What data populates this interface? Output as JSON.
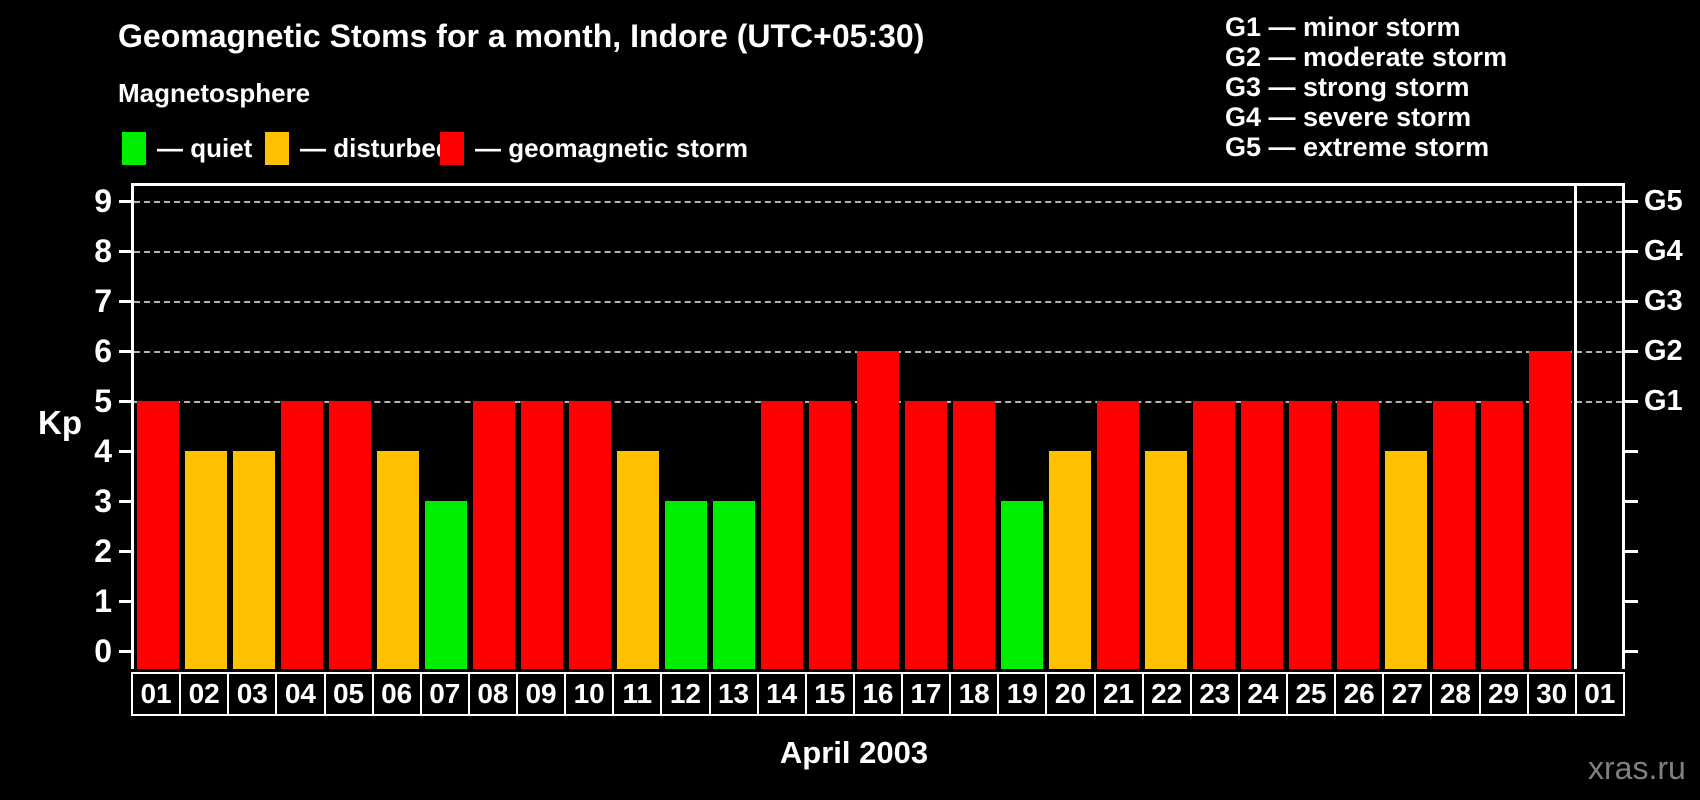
{
  "title": "Geomagnetic Stoms for a month, Indore (UTC+05:30)",
  "subtitle": "Magnetosphere",
  "legend": {
    "items": [
      {
        "label": "— quiet",
        "state": "quiet",
        "color": "#00ee00"
      },
      {
        "label": "— disturbed",
        "state": "disturbed",
        "color": "#ffc000"
      },
      {
        "label": "— geomagnetic storm",
        "state": "storm",
        "color": "#ff0000"
      }
    ]
  },
  "g_scale_legend": [
    "G1 — minor storm",
    "G2 — moderate storm",
    "G3 — strong storm",
    "G4 — severe storm",
    "G5 — extreme storm"
  ],
  "chart_data": {
    "type": "bar",
    "title": "Geomagnetic Stoms for a month, Indore (UTC+05:30)",
    "xlabel": "April 2003",
    "ylabel": "Kp",
    "ylim": [
      0,
      9
    ],
    "y_ticks": [
      0,
      1,
      2,
      3,
      4,
      5,
      6,
      7,
      8,
      9
    ],
    "gridlines_at_kp": [
      5,
      6,
      7,
      8,
      9
    ],
    "categories": [
      "01",
      "02",
      "03",
      "04",
      "05",
      "06",
      "07",
      "08",
      "09",
      "10",
      "11",
      "12",
      "13",
      "14",
      "15",
      "16",
      "17",
      "18",
      "19",
      "20",
      "21",
      "22",
      "23",
      "24",
      "25",
      "26",
      "27",
      "28",
      "29",
      "30",
      "01"
    ],
    "values": [
      5,
      4,
      4,
      5,
      5,
      4,
      3,
      5,
      5,
      5,
      4,
      3,
      3,
      5,
      5,
      6,
      5,
      5,
      3,
      4,
      5,
      4,
      5,
      5,
      5,
      5,
      4,
      5,
      5,
      6,
      null
    ],
    "bar_states": [
      "storm",
      "disturbed",
      "disturbed",
      "storm",
      "storm",
      "disturbed",
      "quiet",
      "storm",
      "storm",
      "storm",
      "disturbed",
      "quiet",
      "quiet",
      "storm",
      "storm",
      "storm",
      "storm",
      "storm",
      "quiet",
      "disturbed",
      "storm",
      "disturbed",
      "storm",
      "storm",
      "storm",
      "storm",
      "disturbed",
      "storm",
      "storm",
      "storm",
      null
    ],
    "colors": {
      "quiet": "#00ee00",
      "disturbed": "#ffc000",
      "storm": "#ff0000"
    },
    "thresholds": {
      "quiet_max": 3,
      "disturbed_max": 4
    },
    "right_axis": [
      {
        "label": "G1",
        "kp": 5
      },
      {
        "label": "G2",
        "kp": 6
      },
      {
        "label": "G3",
        "kp": 7
      },
      {
        "label": "G4",
        "kp": 8
      },
      {
        "label": "G5",
        "kp": 9
      }
    ],
    "month_separator_after_day": 30
  },
  "footer": {
    "watermark": "xras.ru"
  }
}
